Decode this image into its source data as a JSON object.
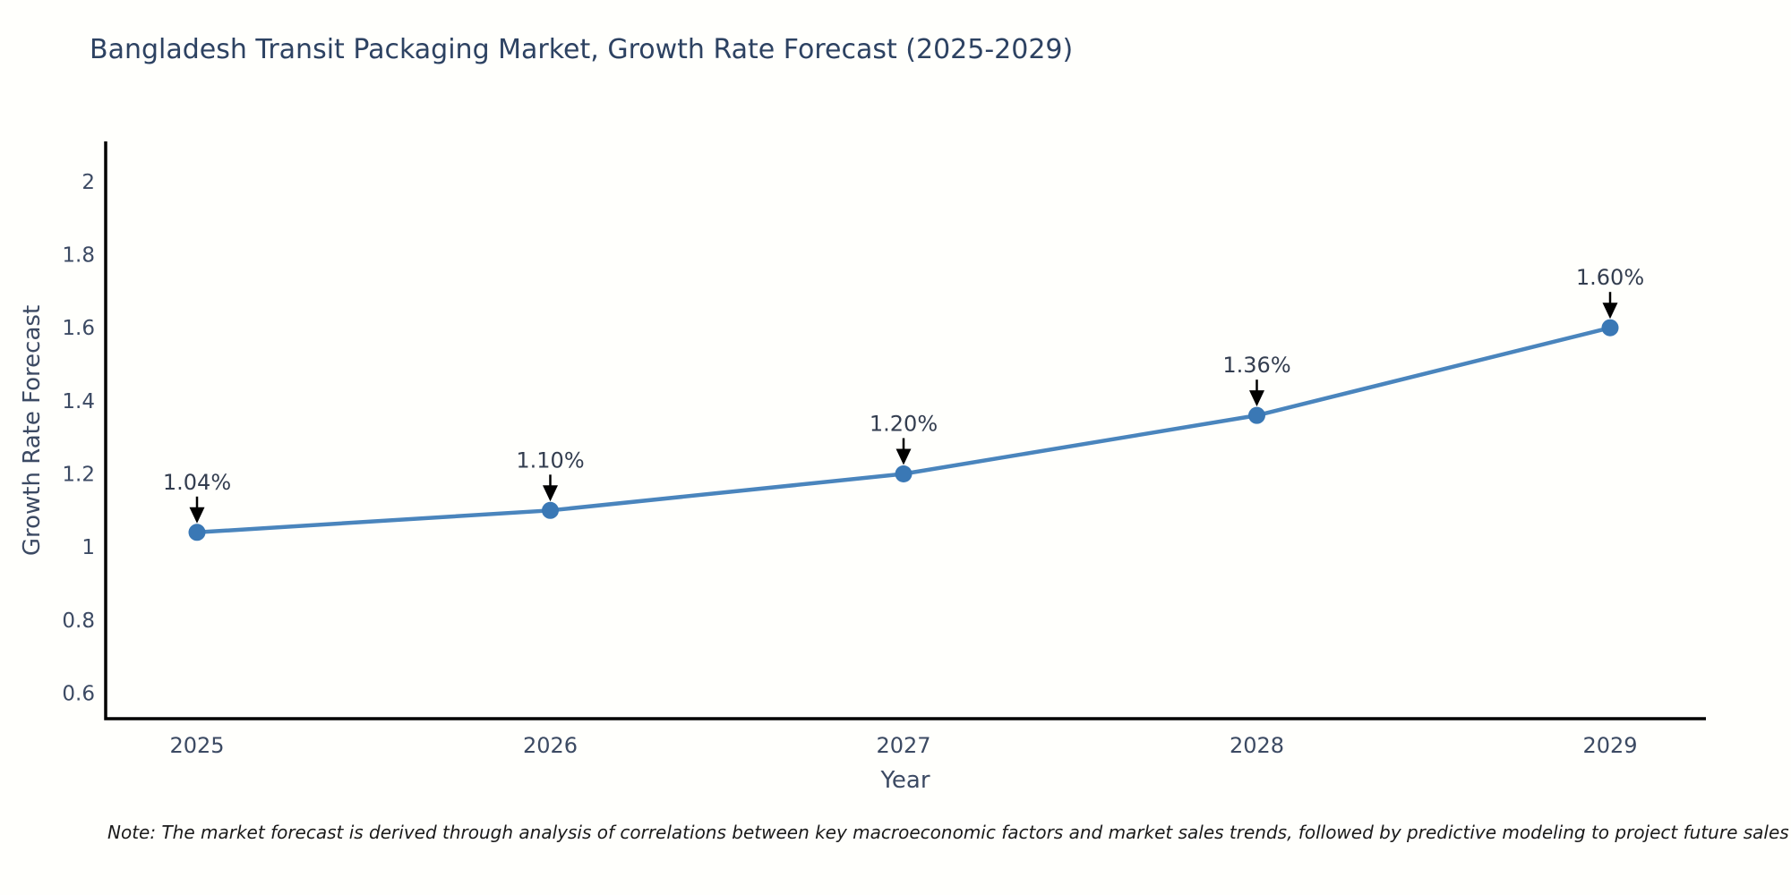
{
  "page": {
    "title": "Bangladesh Transit Packaging Market, Growth Rate Forecast (2025-2029)",
    "note": "Note: The market forecast is derived through analysis of correlations between key macroeconomic factors and market sales trends, followed by predictive modeling to project future sales"
  },
  "chart_data": {
    "type": "line",
    "title": "Bangladesh Transit Packaging Market, Growth Rate Forecast (2025-2029)",
    "xlabel": "Year",
    "ylabel": "Growth Rate Forecast",
    "categories": [
      "2025",
      "2026",
      "2027",
      "2028",
      "2029"
    ],
    "values": [
      1.04,
      1.1,
      1.2,
      1.36,
      1.6
    ],
    "point_labels": [
      "1.04%",
      "1.10%",
      "1.20%",
      "1.36%",
      "1.60%"
    ],
    "y_ticks": [
      0.6,
      0.8,
      1,
      1.2,
      1.4,
      1.6,
      1.8,
      2
    ],
    "ylim": [
      0.53,
      2.11
    ],
    "grid": false,
    "legend_position": "none",
    "annotation_style": "value-label-with-down-arrow-to-point",
    "colors": {
      "line": "#4a85bd",
      "marker": "#3a78b5",
      "arrow": "#000000",
      "axis": "#000000",
      "tick_text": "#3c4a63",
      "annotation_text": "#333d4f",
      "title_text": "#2d4262",
      "note_text": "#1a1a1a",
      "background": "#fffffc"
    }
  }
}
